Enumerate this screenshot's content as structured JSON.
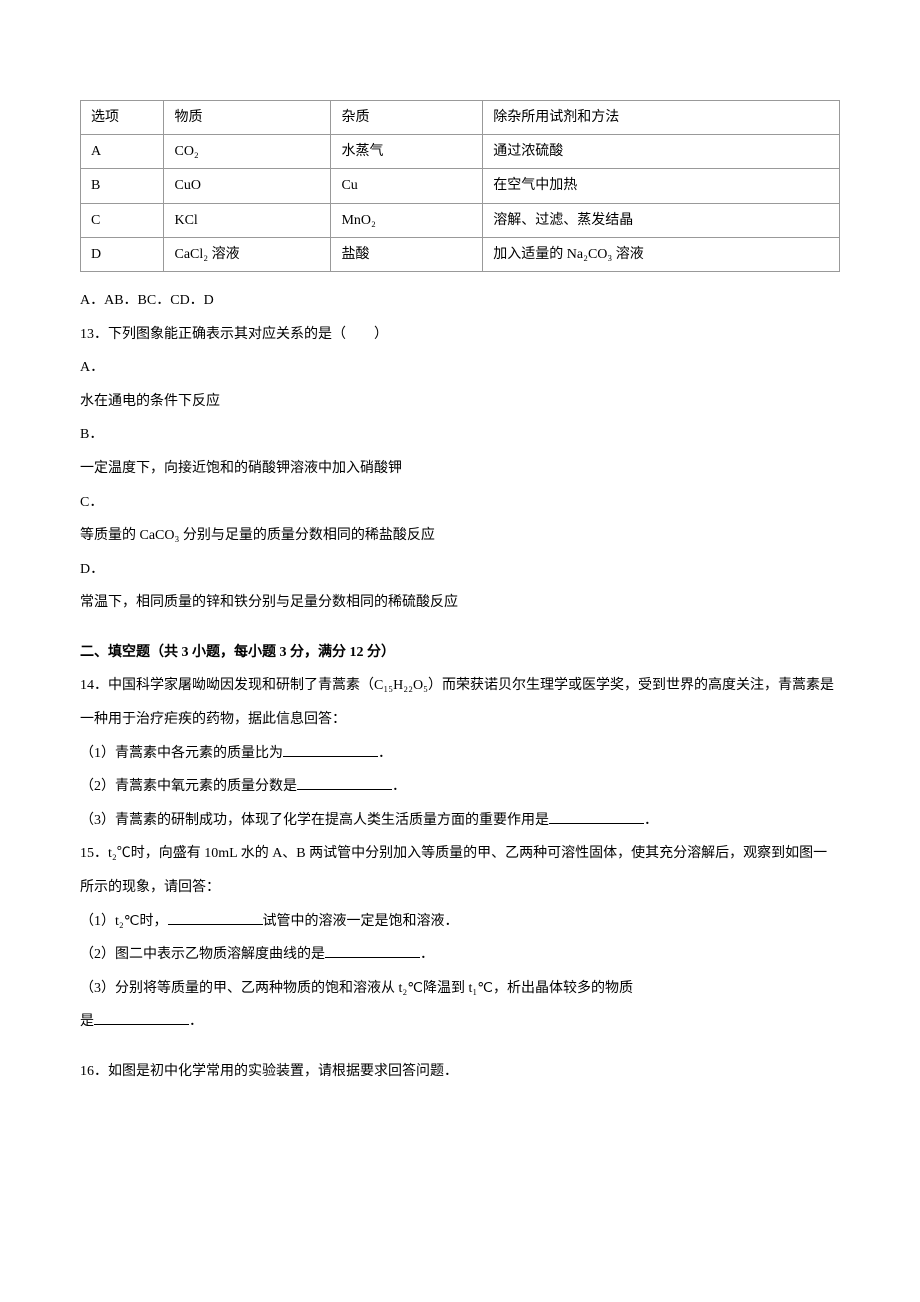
{
  "table": {
    "columns": [
      "选项",
      "物质",
      "杂质",
      "除杂所用试剂和方法"
    ],
    "rows": [
      [
        "A",
        "CO₂",
        "水蒸气",
        "通过浓硫酸"
      ],
      [
        "B",
        "CuO",
        "Cu",
        "在空气中加热"
      ],
      [
        "C",
        "KCl",
        "MnO₂",
        "溶解、过滤、蒸发结晶"
      ],
      [
        "D",
        "CaCl₂ 溶液",
        "盐酸",
        "加入适量的 Na₂CO₃ 溶液"
      ]
    ],
    "border_color": "#999999"
  },
  "q12": {
    "options": "A．AB．BC．CD．D"
  },
  "q13": {
    "stem": "13．下列图象能正确表示其对应关系的是（　　）",
    "a_label": "A．",
    "a_text": "水在通电的条件下反应",
    "b_label": "B．",
    "b_text": "一定温度下，向接近饱和的硝酸钾溶液中加入硝酸钾",
    "c_label": "C．",
    "c_text": "等质量的 CaCO₃ 分别与足量的质量分数相同的稀盐酸反应",
    "d_label": "D．",
    "d_text": "常温下，相同质量的锌和铁分别与足量分数相同的稀硫酸反应"
  },
  "section2": {
    "title": "二、填空题（共 3 小题，每小题 3 分，满分 12 分）"
  },
  "q14": {
    "stem": "14．中国科学家屠呦呦因发现和研制了青蒿素（C₁₅H₂₂O₅）而荣获诺贝尔生理学或医学奖，受到世界的高度关注，青蒿素是一种用于治疗疟疾的药物，据此信息回答：",
    "p1_pre": "（1）青蒿素中各元素的质量比为",
    "p1_post": "．",
    "p2_pre": "（2）青蒿素中氧元素的质量分数是",
    "p2_post": "．",
    "p3_pre": "（3）青蒿素的研制成功，体现了化学在提高人类生活质量方面的重要作用是",
    "p3_post": "．"
  },
  "q15": {
    "stem": "15．t₂℃时，向盛有 10mL 水的 A、B 两试管中分别加入等质量的甲、乙两种可溶性固体，使其充分溶解后，观察到如图一所示的现象，请回答：",
    "p1_pre": "（1）t₂℃时，",
    "p1_post": "试管中的溶液一定是饱和溶液．",
    "p2_pre": "（2）图二中表示乙物质溶解度曲线的是",
    "p2_post": "．",
    "p3_pre": "（3）分别将等质量的甲、乙两种物质的饱和溶液从 t₂℃降温到 t₁℃，析出晶体较多的物质",
    "p3_line2_pre": "是",
    "p3_line2_post": "．"
  },
  "q16": {
    "stem": "16．如图是初中化学常用的实验装置，请根据要求回答问题．"
  }
}
